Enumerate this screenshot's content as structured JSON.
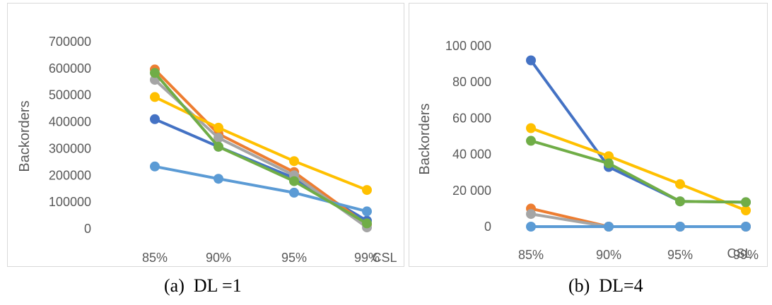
{
  "chart_data": [
    {
      "type": "line",
      "caption": "(a)  DL =1",
      "ylabel": "Backorders",
      "xlabel": "CSL",
      "categories": [
        "85%",
        "90%",
        "95%",
        "99%"
      ],
      "yticks": [
        "0",
        "100000",
        "200000",
        "300000",
        "400000",
        "500000",
        "600000",
        "700000"
      ],
      "ylim": [
        0,
        700000
      ],
      "grid": false,
      "series": [
        {
          "color": "#4472c4",
          "values": [
            410000,
            307000,
            190000,
            30000
          ]
        },
        {
          "color": "#ed7d31",
          "values": [
            596000,
            355000,
            212000,
            15000
          ]
        },
        {
          "color": "#a5a5a5",
          "values": [
            557000,
            340000,
            200000,
            5000
          ]
        },
        {
          "color": "#ffc000",
          "values": [
            493000,
            378000,
            253000,
            145000
          ]
        },
        {
          "color": "#5b9bd5",
          "values": [
            233000,
            187000,
            135000,
            65000
          ]
        },
        {
          "color": "#70ad47",
          "values": [
            583000,
            307000,
            178000,
            20000
          ]
        }
      ]
    },
    {
      "type": "line",
      "caption": "(b)  DL=4",
      "ylabel": "Backorders",
      "xlabel": "CSL",
      "categories": [
        "85%",
        "90%",
        "95%",
        "99%"
      ],
      "yticks": [
        "0",
        "20 000",
        "40 000",
        "60 000",
        "80 000",
        "100 000"
      ],
      "ylim": [
        0,
        100000
      ],
      "grid": false,
      "series": [
        {
          "color": "#4472c4",
          "values": [
            92000,
            33000,
            14000,
            13500
          ]
        },
        {
          "color": "#ed7d31",
          "values": [
            10000,
            0,
            0,
            0
          ]
        },
        {
          "color": "#a5a5a5",
          "values": [
            7000,
            0,
            0,
            0
          ]
        },
        {
          "color": "#ffc000",
          "values": [
            54500,
            39000,
            23500,
            9000
          ]
        },
        {
          "color": "#5b9bd5",
          "values": [
            0,
            0,
            0,
            0
          ]
        },
        {
          "color": "#70ad47",
          "values": [
            47500,
            35000,
            14000,
            13500
          ]
        }
      ]
    }
  ]
}
